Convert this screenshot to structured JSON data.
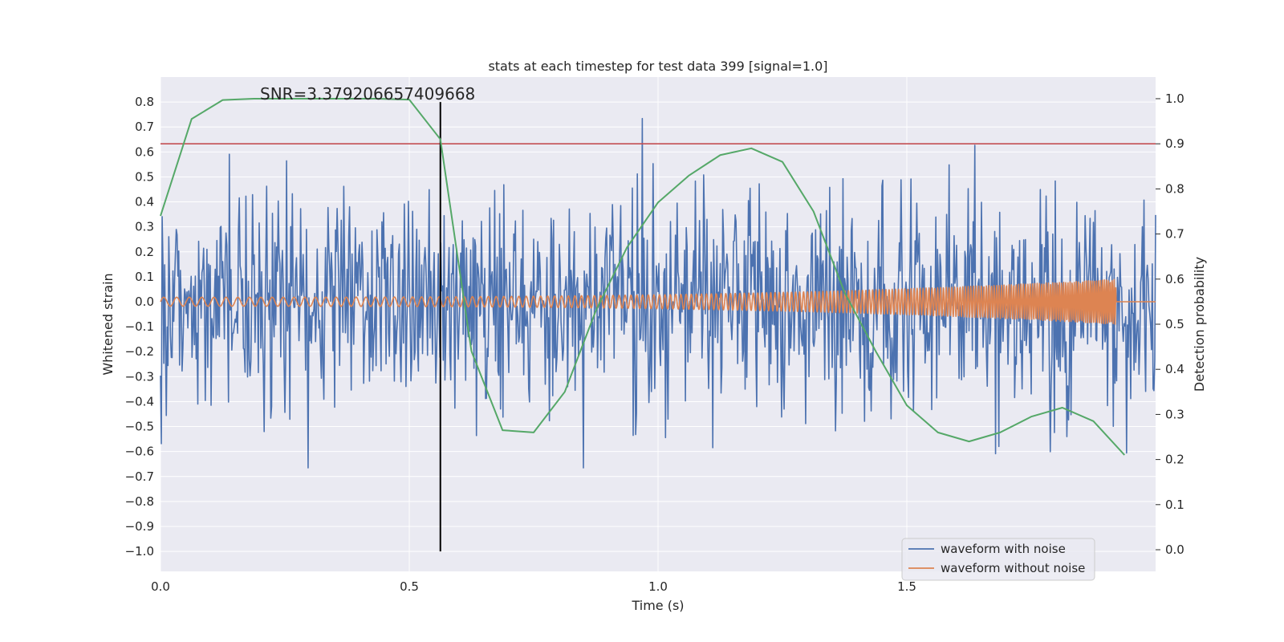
{
  "chart_data": {
    "type": "line",
    "title": "stats at each timestep for test data 399 [signal=1.0]",
    "xlabel": "Time (s)",
    "ylabel_left": "Whitened strain",
    "ylabel_right": "Detection probability",
    "xlim": [
      0.0,
      2.0
    ],
    "ylim_left": [
      -1.08,
      0.9
    ],
    "ylim_right": [
      -0.048,
      1.048
    ],
    "x_ticks": [
      "0.0",
      "0.5",
      "1.0",
      "1.5"
    ],
    "x_tick_values": [
      0.0,
      0.5,
      1.0,
      1.5
    ],
    "y_ticks_left": [
      "0.8",
      "0.7",
      "0.6",
      "0.5",
      "0.4",
      "0.3",
      "0.2",
      "0.1",
      "0.0",
      "−0.1",
      "−0.2",
      "−0.3",
      "−0.4",
      "−0.5",
      "−0.6",
      "−0.7",
      "−0.8",
      "−0.9",
      "−1.0"
    ],
    "y_tick_values_left": [
      0.8,
      0.7,
      0.6,
      0.5,
      0.4,
      0.3,
      0.2,
      0.1,
      0.0,
      -0.1,
      -0.2,
      -0.3,
      -0.4,
      -0.5,
      -0.6,
      -0.7,
      -0.8,
      -0.9,
      -1.0
    ],
    "y_ticks_right": [
      "1.0",
      "0.9",
      "0.8",
      "0.7",
      "0.6",
      "0.5",
      "0.4",
      "0.3",
      "0.2",
      "0.1",
      "0.0"
    ],
    "y_tick_values_right": [
      1.0,
      0.9,
      0.8,
      0.7,
      0.6,
      0.5,
      0.4,
      0.3,
      0.2,
      0.1,
      0.0
    ],
    "annotation": "SNR=3.379206657409668",
    "annotation_x": 0.2,
    "annotation_y": 0.81,
    "threshold": 0.9,
    "marker_time": 0.5625,
    "marker_ymin": -1.0,
    "marker_ymax": 0.8,
    "legend": [
      "waveform with noise",
      "waveform without noise"
    ],
    "legend_position": "lower-right",
    "noise_amplitude_std": 0.22,
    "noise_samples": 1200,
    "signal_duration": 1.92,
    "signal_amplitude_start": 0.018,
    "signal_amplitude_end": 0.09,
    "series": [
      {
        "name": "Detection probability",
        "axis": "right",
        "x": [
          0.0,
          0.0625,
          0.125,
          0.1875,
          0.25,
          0.3125,
          0.375,
          0.4375,
          0.5,
          0.5625,
          0.625,
          0.6875,
          0.75,
          0.8125,
          0.875,
          0.9375,
          1.0,
          1.0625,
          1.125,
          1.1875,
          1.25,
          1.3125,
          1.375,
          1.4375,
          1.5,
          1.5625,
          1.625,
          1.6875,
          1.75,
          1.8125,
          1.875,
          1.9375
        ],
        "y": [
          0.74,
          0.955,
          0.997,
          1.0,
          1.0,
          1.0,
          1.0,
          1.0,
          0.998,
          0.91,
          0.44,
          0.265,
          0.26,
          0.35,
          0.53,
          0.67,
          0.77,
          0.83,
          0.875,
          0.89,
          0.86,
          0.75,
          0.57,
          0.44,
          0.32,
          0.26,
          0.24,
          0.26,
          0.295,
          0.315,
          0.285,
          0.21
        ]
      }
    ],
    "colors": {
      "noise": "#4c72b0",
      "clean": "#dd8452",
      "probability": "#55a868",
      "threshold": "#c44e52",
      "marker": "#000000",
      "plot_bg": "#eaeaf2",
      "grid": "#ffffff"
    }
  }
}
